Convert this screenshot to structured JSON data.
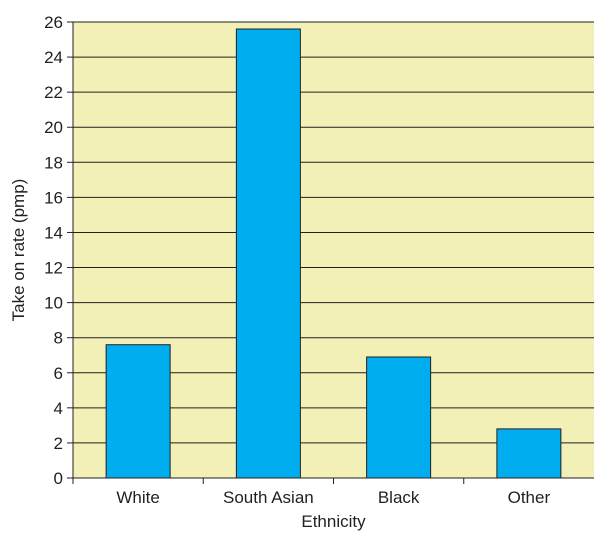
{
  "chart_data": {
    "type": "bar",
    "title": "",
    "xlabel": "Ethnicity",
    "ylabel": "Take on rate (pmp)",
    "categories": [
      "White",
      "South Asian",
      "Black",
      "Other"
    ],
    "values": [
      7.6,
      25.6,
      6.9,
      2.8
    ],
    "ylim": [
      0,
      26
    ],
    "yticks": [
      "0",
      "2",
      "4",
      "6",
      "8",
      "10",
      "12",
      "14",
      "16",
      "18",
      "20",
      "22",
      "24",
      "26"
    ],
    "grid": true,
    "legend": "none",
    "colors": {
      "plot_background": "#f2f0b6",
      "bar_fill": "#00aeef",
      "bar_stroke": "#231f20",
      "gridline": "#231f20",
      "axis": "#231f20"
    }
  }
}
